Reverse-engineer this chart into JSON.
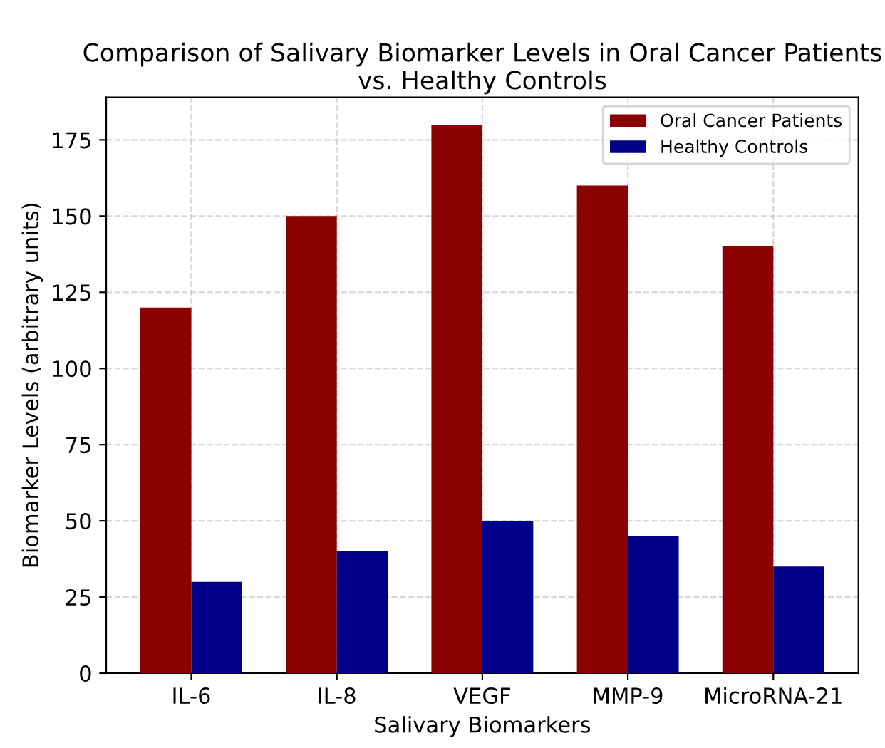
{
  "chart_data": {
    "type": "bar",
    "title": "Comparison of Salivary Biomarker Levels in Oral Cancer Patients vs. Healthy Controls",
    "xlabel": "Salivary Biomarkers",
    "ylabel": "Biomarker Levels (arbitrary units)",
    "categories": [
      "IL-6",
      "IL-8",
      "VEGF",
      "MMP-9",
      "MicroRNA-21"
    ],
    "series": [
      {
        "name": "Oral Cancer Patients",
        "color": "#8b0000",
        "values": [
          120,
          150,
          180,
          160,
          140
        ]
      },
      {
        "name": "Healthy Controls",
        "color": "#00008b",
        "values": [
          30,
          40,
          50,
          45,
          35
        ]
      }
    ],
    "ylim": [
      0,
      189
    ],
    "yticks": [
      0,
      25,
      50,
      75,
      100,
      125,
      150,
      175
    ],
    "grid": true,
    "legend": "top right"
  }
}
